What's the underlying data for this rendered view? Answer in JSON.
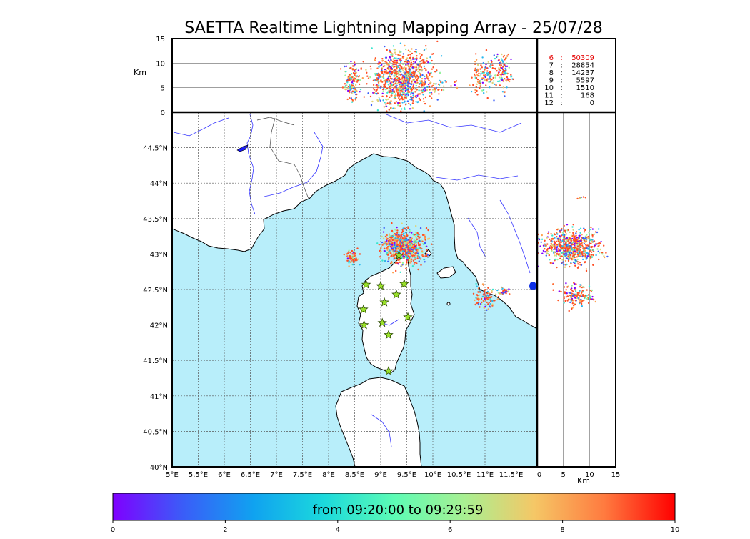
{
  "title": "SAETTA Realtime Lightning Mapping Array - 25/07/28",
  "colors": {
    "sea": "#b8eefa",
    "land": "#ffffff",
    "coast": "#000000",
    "river": "#3333ff",
    "grid": "#555555",
    "station_fill": "#9be22a",
    "stats_highlight": "#e60000"
  },
  "chart_data": [
    {
      "panel": "altitude-vs-longitude",
      "type": "scatter",
      "ylabel": "Km",
      "ylim": [
        0,
        15
      ],
      "y_ticks": [
        "0",
        "5",
        "10",
        "15"
      ],
      "clusters": [
        {
          "lon": 8.45,
          "alt": 6.2,
          "n": 140,
          "dlon": 0.08,
          "dalt": 1.8
        },
        {
          "lon": 9.4,
          "alt": 7.0,
          "n": 900,
          "dlon": 0.28,
          "dalt": 2.8
        },
        {
          "lon": 10.1,
          "alt": 5.5,
          "n": 40,
          "dlon": 0.15,
          "dalt": 1.2
        },
        {
          "lon": 11.0,
          "alt": 7.5,
          "n": 130,
          "dlon": 0.12,
          "dalt": 2.0
        },
        {
          "lon": 11.35,
          "alt": 8.5,
          "n": 100,
          "dlon": 0.08,
          "dalt": 1.8
        }
      ]
    },
    {
      "panel": "plan-view-map",
      "type": "scatter",
      "x_ticks": [
        "5°E",
        "5.5°E",
        "6°E",
        "6.5°E",
        "7°E",
        "7.5°E",
        "8°E",
        "8.5°E",
        "9°E",
        "9.5°E",
        "10°E",
        "10.5°E",
        "11°E",
        "11.5°E"
      ],
      "y_ticks": [
        "40°N",
        "40.5°N",
        "41°N",
        "41.5°N",
        "42°N",
        "42.5°N",
        "43°N",
        "43.5°N",
        "44°N",
        "44.5°N"
      ],
      "xlim": [
        5,
        12.0
      ],
      "ylim": [
        40,
        45
      ],
      "clusters": [
        {
          "lon": 9.45,
          "lat": 43.1,
          "n": 700,
          "dlon": 0.2,
          "dlat": 0.12
        },
        {
          "lon": 8.45,
          "lat": 42.95,
          "n": 60,
          "dlon": 0.06,
          "dlat": 0.05
        },
        {
          "lon": 11.0,
          "lat": 42.38,
          "n": 90,
          "dlon": 0.12,
          "dlat": 0.07
        },
        {
          "lon": 11.35,
          "lat": 42.47,
          "n": 30,
          "dlon": 0.07,
          "dlat": 0.03
        }
      ],
      "stations": [
        {
          "lon": 8.72,
          "lat": 42.57
        },
        {
          "lon": 9.0,
          "lat": 42.55
        },
        {
          "lon": 9.45,
          "lat": 42.58
        },
        {
          "lon": 9.3,
          "lat": 42.43
        },
        {
          "lon": 9.07,
          "lat": 42.32
        },
        {
          "lon": 8.67,
          "lat": 42.22
        },
        {
          "lon": 9.52,
          "lat": 42.11
        },
        {
          "lon": 8.68,
          "lat": 42.0
        },
        {
          "lon": 9.03,
          "lat": 42.03
        },
        {
          "lon": 9.15,
          "lat": 41.86
        },
        {
          "lon": 9.15,
          "lat": 41.35
        },
        {
          "lon": 9.35,
          "lat": 42.98
        }
      ]
    },
    {
      "panel": "latitude-vs-altitude",
      "type": "scatter",
      "xlabel": "Km",
      "xlim": [
        0,
        15
      ],
      "x_ticks": [
        "0",
        "5",
        "10",
        "15"
      ],
      "clusters": [
        {
          "alt": 6.5,
          "lat": 43.1,
          "n": 700,
          "dalt": 2.6,
          "dlat": 0.12
        },
        {
          "alt": 7.5,
          "lat": 42.42,
          "n": 150,
          "dalt": 1.8,
          "dlat": 0.08
        },
        {
          "alt": 8.5,
          "lat": 43.8,
          "n": 8,
          "dalt": 0.5,
          "dlat": 0.01
        }
      ]
    },
    {
      "panel": "colorbar",
      "type": "colorbar",
      "label": "from 09:20:00 to 09:29:59",
      "range": [
        0,
        10
      ],
      "ticks": [
        "0",
        "2",
        "4",
        "6",
        "8",
        "10"
      ],
      "stops": [
        "#7f00ff",
        "#3a5df8",
        "#10a2f0",
        "#1bd9dc",
        "#5cfcb5",
        "#a8f092",
        "#f5c766",
        "#ff7a3f",
        "#ff0000"
      ]
    }
  ],
  "stats": [
    {
      "k": "6",
      "v": "50309",
      "highlight": true
    },
    {
      "k": "7",
      "v": "28854",
      "highlight": false
    },
    {
      "k": "8",
      "v": "14237",
      "highlight": false
    },
    {
      "k": "9",
      "v": "5597",
      "highlight": false
    },
    {
      "k": "10",
      "v": "1510",
      "highlight": false
    },
    {
      "k": "11",
      "v": "168",
      "highlight": false
    },
    {
      "k": "12",
      "v": "0",
      "highlight": false
    }
  ]
}
